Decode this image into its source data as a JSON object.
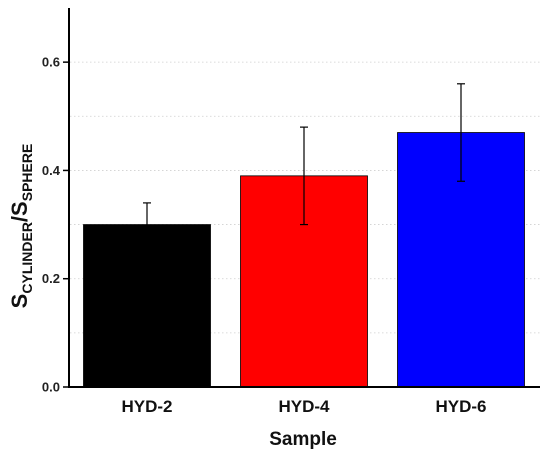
{
  "chart_data": {
    "type": "bar",
    "categories": [
      "HYD-2",
      "HYD-4",
      "HYD-6"
    ],
    "values": [
      0.3,
      0.39,
      0.47
    ],
    "errors": [
      0.04,
      0.09,
      0.09
    ],
    "colors": [
      "#000000",
      "#ff0000",
      "#0000ff"
    ],
    "xlabel": "Sample",
    "ylabel": {
      "main1": "S",
      "sub1": "CYLINDER",
      "slash": "/",
      "main2": "S",
      "sub2": "SPHERE"
    },
    "ylim": [
      0,
      0.7
    ],
    "yticks": [
      0.0,
      0.2,
      0.4,
      0.6
    ],
    "ytick_labels": [
      "0.0",
      "0.2",
      "0.4",
      "0.6"
    ],
    "grid": "horizontal dotted"
  }
}
